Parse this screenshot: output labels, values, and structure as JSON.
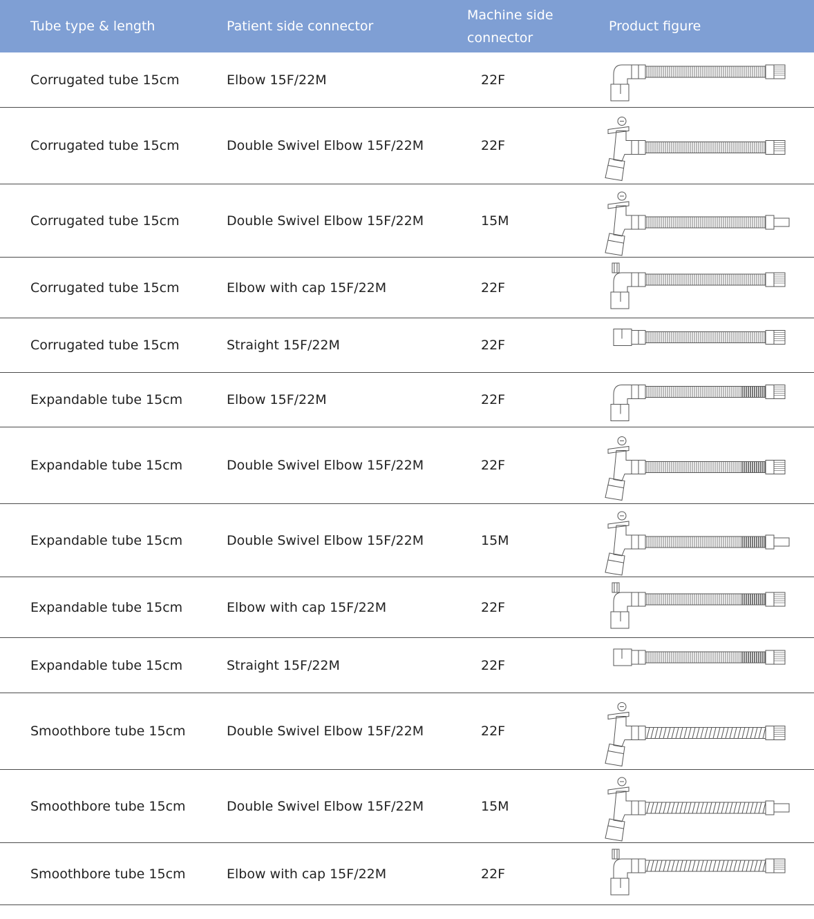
{
  "header": {
    "tube": "Tube type & length",
    "patient": "Patient side connector",
    "machine_line1": "Machine side",
    "machine_line2": "connector",
    "figure": "Product figure"
  },
  "rows": [
    {
      "tube": "Corrugated tube 15cm",
      "patient": "Elbow 15F/22M",
      "machine": "22F",
      "figure_icon": "elbow-corrugated-22f-figure-icon"
    },
    {
      "tube": "Corrugated tube 15cm",
      "patient": "Double Swivel Elbow 15F/22M",
      "machine": "22F",
      "figure_icon": "double-swivel-corrugated-22f-figure-icon"
    },
    {
      "tube": "Corrugated tube 15cm",
      "patient": "Double Swivel Elbow 15F/22M",
      "machine": "15M",
      "figure_icon": "double-swivel-corrugated-15m-figure-icon"
    },
    {
      "tube": "Corrugated tube 15cm",
      "patient": "Elbow with cap 15F/22M",
      "machine": "22F",
      "figure_icon": "cap-elbow-corrugated-22f-figure-icon"
    },
    {
      "tube": "Corrugated tube 15cm",
      "patient": "Straight 15F/22M",
      "machine": "22F",
      "figure_icon": "straight-corrugated-22f-figure-icon"
    },
    {
      "tube": "Expandable tube 15cm",
      "patient": "Elbow 15F/22M",
      "machine": "22F",
      "figure_icon": "elbow-expandable-22f-figure-icon"
    },
    {
      "tube": "Expandable tube 15cm",
      "patient": "Double Swivel Elbow 15F/22M",
      "machine": "22F",
      "figure_icon": "double-swivel-expandable-22f-figure-icon"
    },
    {
      "tube": "Expandable tube 15cm",
      "patient": "Double Swivel Elbow 15F/22M",
      "machine": "15M",
      "figure_icon": "double-swivel-expandable-15m-figure-icon"
    },
    {
      "tube": "Expandable tube 15cm",
      "patient": "Elbow with cap 15F/22M",
      "machine": "22F",
      "figure_icon": "cap-elbow-expandable-22f-figure-icon"
    },
    {
      "tube": "Expandable tube 15cm",
      "patient": "Straight 15F/22M",
      "machine": "22F",
      "figure_icon": "straight-expandable-22f-figure-icon"
    },
    {
      "tube": "Smoothbore tube 15cm",
      "patient": "Double Swivel Elbow 15F/22M",
      "machine": "22F",
      "figure_icon": "double-swivel-smoothbore-22f-figure-icon"
    },
    {
      "tube": "Smoothbore tube 15cm",
      "patient": "Double Swivel Elbow 15F/22M",
      "machine": "15M",
      "figure_icon": "double-swivel-smoothbore-15m-figure-icon"
    },
    {
      "tube": "Smoothbore tube 15cm",
      "patient": "Elbow with cap 15F/22M",
      "machine": "22F",
      "figure_icon": "cap-elbow-smoothbore-22f-figure-icon"
    }
  ],
  "colors": {
    "header_bg": "#7f9fd4",
    "header_text": "#ffffff",
    "text": "#222222",
    "rule": "#4a4a4a"
  }
}
